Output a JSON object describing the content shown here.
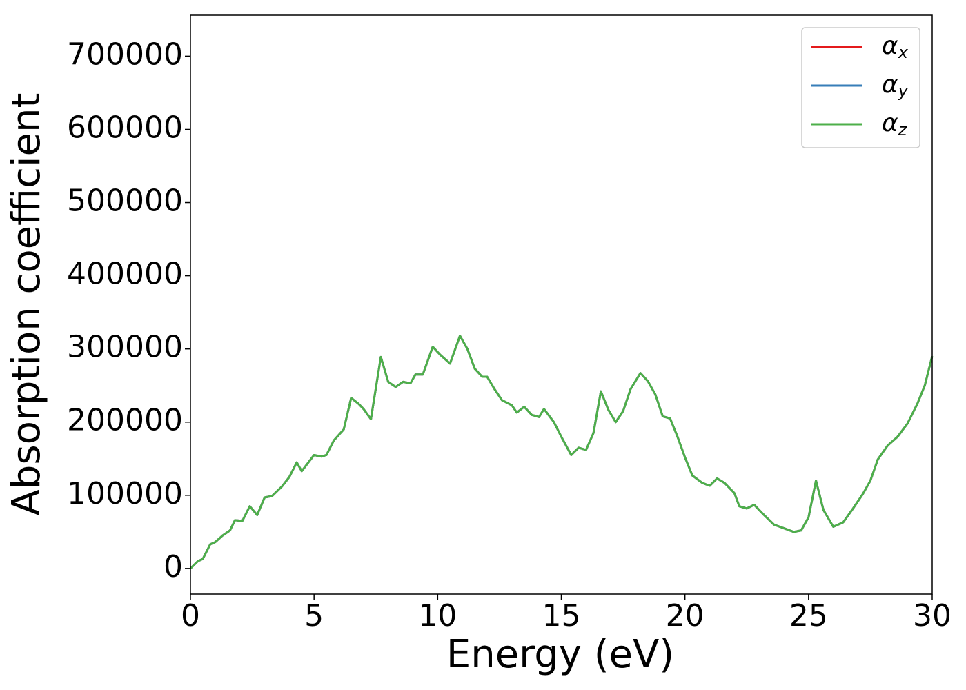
{
  "chart_data": {
    "type": "line",
    "xlabel": "Energy (eV)",
    "ylabel": "Absorption coefficient",
    "x": [
      0,
      0.3,
      0.5,
      0.8,
      1.0,
      1.3,
      1.6,
      1.8,
      2.1,
      2.4,
      2.7,
      3.0,
      3.3,
      3.7,
      4.0,
      4.3,
      4.5,
      5.0,
      5.3,
      5.5,
      5.8,
      6.2,
      6.5,
      6.8,
      7.0,
      7.3,
      7.7,
      8.0,
      8.3,
      8.6,
      8.9,
      9.1,
      9.4,
      9.8,
      10.1,
      10.5,
      10.9,
      11.2,
      11.5,
      11.8,
      12.0,
      12.3,
      12.6,
      13.0,
      13.2,
      13.5,
      13.8,
      14.1,
      14.3,
      14.7,
      15.0,
      15.4,
      15.7,
      16.0,
      16.3,
      16.6,
      16.9,
      17.2,
      17.5,
      17.8,
      18.2,
      18.5,
      18.8,
      19.1,
      19.4,
      19.7,
      20.0,
      20.3,
      20.7,
      21.0,
      21.3,
      21.6,
      22.0,
      22.2,
      22.5,
      22.8,
      23.2,
      23.6,
      24.0,
      24.4,
      24.7,
      25.0,
      25.3,
      25.6,
      26.0,
      26.4,
      26.8,
      27.2,
      27.5,
      27.8,
      28.2,
      28.6,
      29.0,
      29.4,
      29.7,
      30.0
    ],
    "series": [
      {
        "name": "αx",
        "color": "#e41a1c",
        "values": [
          0,
          10000,
          13000,
          33000,
          36000,
          45000,
          52000,
          66000,
          65000,
          85000,
          73000,
          97000,
          99000,
          112000,
          125000,
          145000,
          133000,
          155000,
          153000,
          155000,
          175000,
          190000,
          233000,
          225000,
          218000,
          204000,
          289000,
          255000,
          248000,
          255000,
          253000,
          265000,
          265000,
          303000,
          292000,
          280000,
          318000,
          300000,
          273000,
          262000,
          262000,
          245000,
          230000,
          223000,
          213000,
          221000,
          210000,
          207000,
          218000,
          200000,
          180000,
          155000,
          165000,
          162000,
          185000,
          242000,
          217000,
          200000,
          215000,
          245000,
          267000,
          256000,
          238000,
          208000,
          205000,
          180000,
          152000,
          127000,
          117000,
          113000,
          123000,
          117000,
          103000,
          85000,
          82000,
          87000,
          73000,
          60000,
          55000,
          50000,
          52000,
          70000,
          120000,
          80000,
          57000,
          63000,
          82000,
          102000,
          120000,
          149000,
          168000,
          180000,
          198000,
          225000,
          250000,
          290000
        ]
      },
      {
        "name": "αy",
        "color": "#377eb8",
        "values": [
          0,
          10000,
          13000,
          33000,
          36000,
          45000,
          52000,
          66000,
          65000,
          85000,
          73000,
          97000,
          99000,
          112000,
          125000,
          145000,
          133000,
          155000,
          153000,
          155000,
          175000,
          190000,
          233000,
          225000,
          218000,
          204000,
          289000,
          255000,
          248000,
          255000,
          253000,
          265000,
          265000,
          303000,
          292000,
          280000,
          318000,
          300000,
          273000,
          262000,
          262000,
          245000,
          230000,
          223000,
          213000,
          221000,
          210000,
          207000,
          218000,
          200000,
          180000,
          155000,
          165000,
          162000,
          185000,
          242000,
          217000,
          200000,
          215000,
          245000,
          267000,
          256000,
          238000,
          208000,
          205000,
          180000,
          152000,
          127000,
          117000,
          113000,
          123000,
          117000,
          103000,
          85000,
          82000,
          87000,
          73000,
          60000,
          55000,
          50000,
          52000,
          70000,
          120000,
          80000,
          57000,
          63000,
          82000,
          102000,
          120000,
          149000,
          168000,
          180000,
          198000,
          225000,
          250000,
          290000
        ]
      },
      {
        "name": "αz",
        "color": "#4daf4a",
        "values": [
          0,
          10000,
          13000,
          33000,
          36000,
          45000,
          52000,
          66000,
          65000,
          85000,
          73000,
          97000,
          99000,
          112000,
          125000,
          145000,
          133000,
          155000,
          153000,
          155000,
          175000,
          190000,
          233000,
          225000,
          218000,
          204000,
          289000,
          255000,
          248000,
          255000,
          253000,
          265000,
          265000,
          303000,
          292000,
          280000,
          318000,
          300000,
          273000,
          262000,
          262000,
          245000,
          230000,
          223000,
          213000,
          221000,
          210000,
          207000,
          218000,
          200000,
          180000,
          155000,
          165000,
          162000,
          185000,
          242000,
          217000,
          200000,
          215000,
          245000,
          267000,
          256000,
          238000,
          208000,
          205000,
          180000,
          152000,
          127000,
          117000,
          113000,
          123000,
          117000,
          103000,
          85000,
          82000,
          87000,
          73000,
          60000,
          55000,
          50000,
          52000,
          70000,
          120000,
          80000,
          57000,
          63000,
          82000,
          102000,
          120000,
          149000,
          168000,
          180000,
          198000,
          225000,
          250000,
          290000
        ]
      }
    ],
    "xlim": [
      0,
      30
    ],
    "xticks": [
      0,
      5,
      10,
      15,
      20,
      25,
      30
    ],
    "ylim": [
      -35000,
      756000
    ],
    "yticks": [
      0,
      100000,
      200000,
      300000,
      400000,
      500000,
      600000,
      700000
    ],
    "legend": "upper right",
    "grid": false
  }
}
